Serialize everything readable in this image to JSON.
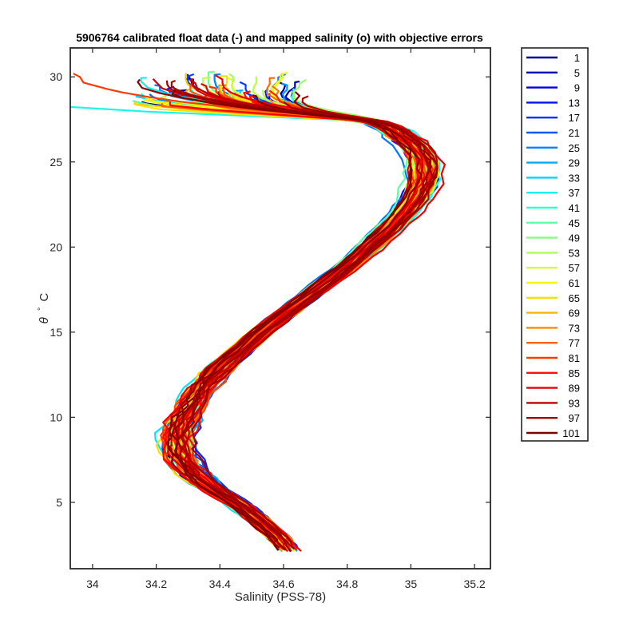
{
  "chart_data": {
    "type": "line",
    "title": "5906764 calibrated float data (-) and mapped salinity (o) with objective errors",
    "xlabel": "Salinity (PSS-78)",
    "ylabel_symbol": "θ",
    "ylabel_degree": "°",
    "ylabel_unit": "C",
    "xlim": [
      33.93,
      35.25
    ],
    "ylim": [
      1.1,
      31.7
    ],
    "xticks": [
      "34",
      "34.2",
      "34.4",
      "34.6",
      "34.8",
      "35",
      "35.2"
    ],
    "yticks": [
      "5",
      "10",
      "15",
      "20",
      "25",
      "30"
    ],
    "legend": {
      "placement": "outside-right",
      "entries": [
        "1",
        "5",
        "9",
        "13",
        "17",
        "21",
        "25",
        "29",
        "33",
        "37",
        "41",
        "45",
        "49",
        "53",
        "57",
        "61",
        "65",
        "69",
        "73",
        "77",
        "81",
        "85",
        "89",
        "93",
        "97",
        "101"
      ]
    },
    "colormap": [
      "#00008f",
      "#0000c0",
      "#0000f0",
      "#0020ff",
      "#0050ff",
      "#0080ff",
      "#00b0ff",
      "#00e0ff",
      "#20ffdf",
      "#50ffaf",
      "#80ff80",
      "#b0ff50",
      "#e0ff20",
      "#fff000",
      "#ffc000",
      "#ff9000",
      "#ff6000",
      "#ff3000",
      "#ff0000",
      "#cf0000",
      "#9f0000",
      "#800000"
    ],
    "mean_profile": {
      "theta": [
        2.2,
        3.0,
        4.0,
        5.0,
        6.0,
        7.0,
        8.0,
        9.0,
        10.0,
        11.0,
        12.0,
        13.0,
        14.0,
        15.0,
        16.0,
        17.0,
        18.0,
        19.0,
        20.0,
        21.0,
        22.0,
        23.0,
        24.0,
        25.0,
        26.0,
        27.0,
        27.6,
        28.0,
        28.5,
        29.0,
        29.5
      ],
      "salinity": [
        34.615,
        34.58,
        34.52,
        34.45,
        34.36,
        34.3,
        34.27,
        34.27,
        34.29,
        34.32,
        34.36,
        34.41,
        34.47,
        34.53,
        34.6,
        34.67,
        34.74,
        34.81,
        34.87,
        34.93,
        34.98,
        35.02,
        35.04,
        35.04,
        35.01,
        34.94,
        34.86,
        34.76,
        34.62,
        34.5,
        34.4
      ]
    },
    "profiles_plotted": 101,
    "grid": false
  }
}
